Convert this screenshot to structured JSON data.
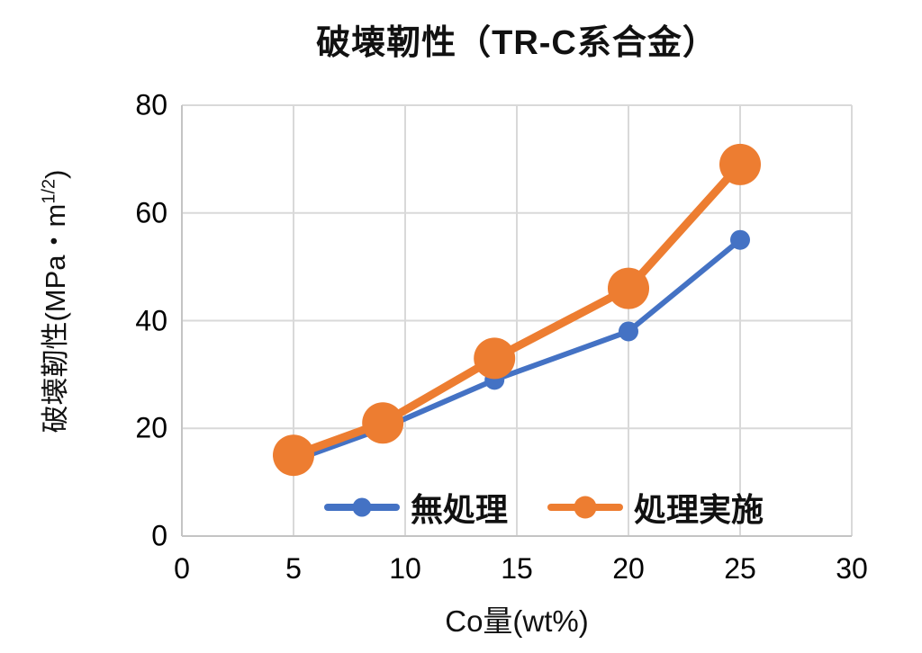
{
  "title": "破壊靭性（TR-C系合金）",
  "y_axis": {
    "label_prefix": "破壊靭性(MPa・m",
    "label_sup": "1/2",
    "label_suffix": ")"
  },
  "x_axis": {
    "label": "Co量(wt%)"
  },
  "legend": {
    "items": [
      {
        "label": "無処理",
        "color": "#4472C4",
        "dot_size": 21
      },
      {
        "label": "処理実施",
        "color": "#ED7D31",
        "dot_size": 25
      }
    ]
  },
  "colors": {
    "grid": "#D9D9D9",
    "axis": "#C4C4C4",
    "text": "#111111",
    "background": "#FFFFFF"
  },
  "chart_data": {
    "type": "line",
    "title": "破壊靭性（TR-C系合金）",
    "xlabel": "Co量(wt%)",
    "ylabel": "破壊靭性(MPa・m1/2)",
    "x": [
      5,
      9,
      14,
      20,
      25
    ],
    "series": [
      {
        "id": "untreated",
        "name": "無処理",
        "color": "#4472C4",
        "values": [
          14,
          20,
          29,
          38,
          55
        ],
        "line_width": 6,
        "marker_radius": 11
      },
      {
        "id": "treated",
        "name": "処理実施",
        "color": "#ED7D31",
        "values": [
          15,
          21,
          33,
          46,
          69
        ],
        "line_width": 9,
        "marker_radius": 23
      }
    ],
    "xlim": [
      0,
      30
    ],
    "ylim": [
      0,
      80
    ],
    "x_ticks": [
      0,
      5,
      10,
      15,
      20,
      25,
      30
    ],
    "y_ticks": [
      0,
      20,
      40,
      60,
      80
    ],
    "grid": true,
    "legend_position": "bottom-inside"
  }
}
